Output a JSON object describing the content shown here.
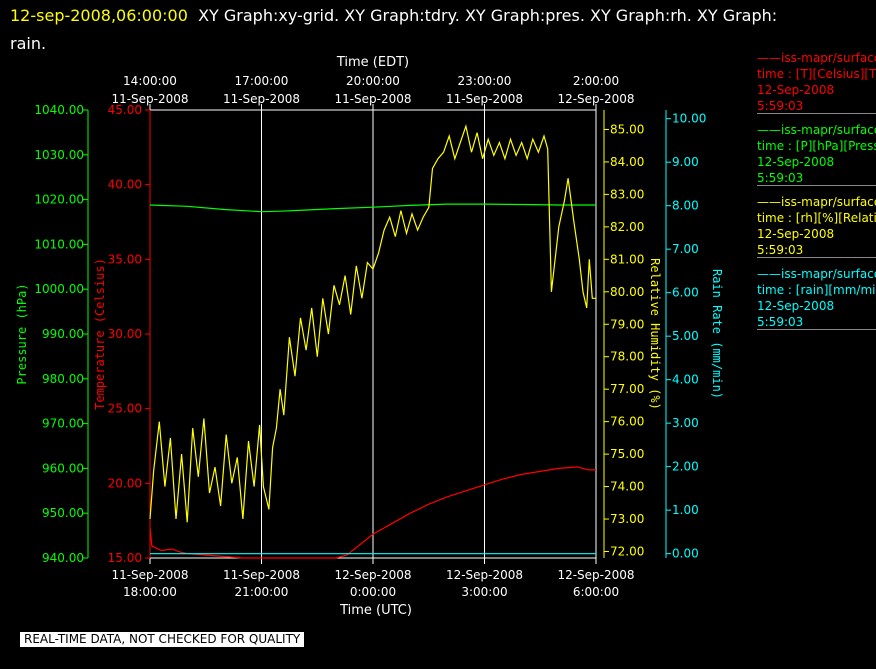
{
  "header": {
    "timestamp": "12-sep-2008,06:00:00",
    "line1": "XY Graph:xy-grid.  XY Graph:tdry.  XY Graph:pres.  XY Graph:rh.  XY Graph:",
    "line2": "rain."
  },
  "legend": [
    {
      "line": "——iss-mapr/surface",
      "desc": "time : [T][Celsius][T",
      "date": "12-Sep-2008",
      "time": "5:59:03",
      "color": "#ff0000"
    },
    {
      "line": "——iss-mapr/surface",
      "desc": "time : [P][hPa][Press",
      "date": "12-Sep-2008",
      "time": "5:59:03",
      "color": "#00ff00"
    },
    {
      "line": "——iss-mapr/surface",
      "desc": "time : [rh][%][Relati",
      "date": "12-Sep-2008",
      "time": "5:59:03",
      "color": "#ffff00"
    },
    {
      "line": "——iss-mapr/surface",
      "desc": "time : [rain][mm/min",
      "date": "12-Sep-2008",
      "time": "5:59:03",
      "color": "#00ffff"
    }
  ],
  "quality_note": "REAL-TIME DATA, NOT CHECKED FOR QUALITY",
  "chart_data": {
    "type": "line",
    "top_axis": {
      "title": "Time (EDT)",
      "ticks": [
        {
          "t": 0,
          "time": "14:00:00",
          "date": "11-Sep-2008"
        },
        {
          "t": 3,
          "time": "17:00:00",
          "date": "11-Sep-2008"
        },
        {
          "t": 6,
          "time": "20:00:00",
          "date": "11-Sep-2008"
        },
        {
          "t": 9,
          "time": "23:00:00",
          "date": "11-Sep-2008"
        },
        {
          "t": 12,
          "time": "2:00:00",
          "date": "12-Sep-2008"
        }
      ]
    },
    "bottom_axis": {
      "title": "Time (UTC)",
      "ticks": [
        {
          "t": 0,
          "date": "11-Sep-2008",
          "time": "18:00:00"
        },
        {
          "t": 3,
          "date": "11-Sep-2008",
          "time": "21:00:00"
        },
        {
          "t": 6,
          "date": "12-Sep-2008",
          "time": "0:00:00"
        },
        {
          "t": 9,
          "date": "12-Sep-2008",
          "time": "3:00:00"
        },
        {
          "t": 12,
          "date": "12-Sep-2008",
          "time": "6:00:00"
        }
      ]
    },
    "xlim": [
      0,
      12
    ],
    "grid": true,
    "axes": {
      "pressure": {
        "label": "Pressure (hPa)",
        "color": "#00ff00",
        "min": 940,
        "max": 1040,
        "ticks": [
          "940.00",
          "950.00",
          "960.00",
          "970.00",
          "980.00",
          "990.00",
          "1000.00",
          "1010.00",
          "1020.00",
          "1030.00",
          "1040.00"
        ]
      },
      "temperature": {
        "label": "Temperature (Celsius)",
        "color": "#ff0000",
        "min": 15,
        "max": 45,
        "ticks": [
          "15.00",
          "20.00",
          "25.00",
          "30.00",
          "35.00",
          "40.00",
          "45.00"
        ]
      },
      "rh": {
        "label": "Relative Humidity (%)",
        "color": "#ffff00",
        "min": 71.8,
        "max": 85.6,
        "ticks": [
          "72.00",
          "73.00",
          "74.00",
          "75.00",
          "76.00",
          "77.00",
          "78.00",
          "79.00",
          "80.00",
          "81.00",
          "82.00",
          "83.00",
          "84.00",
          "85.00"
        ]
      },
      "rain": {
        "label": "Rain Rate (mm/min)",
        "color": "#00ffff",
        "min": -0.1,
        "max": 10.2,
        "ticks": [
          "0.00",
          "1.00",
          "2.00",
          "3.00",
          "4.00",
          "5.00",
          "6.00",
          "7.00",
          "8.00",
          "9.00",
          "10.00"
        ]
      }
    },
    "series": [
      {
        "axis": "temperature",
        "color": "#ff0000",
        "points": [
          [
            0,
            17
          ],
          [
            0.05,
            15.8
          ],
          [
            0.3,
            15.5
          ],
          [
            0.6,
            15.6
          ],
          [
            0.8,
            15.4
          ],
          [
            1,
            15.3
          ],
          [
            1.5,
            15.2
          ],
          [
            2,
            15.1
          ],
          [
            2.5,
            15
          ],
          [
            3,
            15
          ],
          [
            4,
            15
          ],
          [
            4.5,
            15
          ],
          [
            5,
            15
          ],
          [
            5.3,
            15.2
          ],
          [
            5.6,
            15.8
          ],
          [
            6,
            16.6
          ],
          [
            6.5,
            17.3
          ],
          [
            7,
            18
          ],
          [
            7.5,
            18.6
          ],
          [
            8,
            19.1
          ],
          [
            8.5,
            19.5
          ],
          [
            9,
            19.9
          ],
          [
            9.5,
            20.3
          ],
          [
            10,
            20.6
          ],
          [
            10.5,
            20.8
          ],
          [
            11,
            21
          ],
          [
            11.5,
            21.1
          ],
          [
            11.8,
            20.9
          ],
          [
            12,
            20.9
          ]
        ]
      },
      {
        "axis": "pressure",
        "color": "#00ff00",
        "points": [
          [
            0,
            1018.8
          ],
          [
            1,
            1018.5
          ],
          [
            2,
            1017.8
          ],
          [
            3,
            1017.3
          ],
          [
            3.5,
            1017.4
          ],
          [
            4,
            1017.6
          ],
          [
            5,
            1018
          ],
          [
            6,
            1018.3
          ],
          [
            7,
            1018.7
          ],
          [
            8,
            1019
          ],
          [
            9,
            1019
          ],
          [
            10,
            1018.9
          ],
          [
            11,
            1018.8
          ],
          [
            12,
            1018.8
          ]
        ]
      },
      {
        "axis": "rh",
        "color": "#ffff00",
        "points": [
          [
            0,
            73
          ],
          [
            0.1,
            74.5
          ],
          [
            0.25,
            76
          ],
          [
            0.4,
            74
          ],
          [
            0.55,
            75.5
          ],
          [
            0.7,
            73
          ],
          [
            0.85,
            75
          ],
          [
            1,
            72.9
          ],
          [
            1.15,
            75.8
          ],
          [
            1.3,
            74.3
          ],
          [
            1.45,
            76.1
          ],
          [
            1.6,
            73.8
          ],
          [
            1.75,
            74.6
          ],
          [
            1.9,
            73.4
          ],
          [
            2.05,
            75.6
          ],
          [
            2.2,
            74.1
          ],
          [
            2.35,
            74.9
          ],
          [
            2.5,
            73
          ],
          [
            2.65,
            75.4
          ],
          [
            2.8,
            74
          ],
          [
            2.95,
            75.9
          ],
          [
            3.05,
            74
          ],
          [
            3.2,
            73.3
          ],
          [
            3.3,
            75.2
          ],
          [
            3.4,
            75.8
          ],
          [
            3.5,
            77
          ],
          [
            3.6,
            76.2
          ],
          [
            3.75,
            78.6
          ],
          [
            3.9,
            77.4
          ],
          [
            4.05,
            79.2
          ],
          [
            4.2,
            78.2
          ],
          [
            4.35,
            79.5
          ],
          [
            4.5,
            78
          ],
          [
            4.65,
            79.8
          ],
          [
            4.8,
            78.7
          ],
          [
            4.95,
            80.2
          ],
          [
            5.1,
            79.6
          ],
          [
            5.25,
            80.5
          ],
          [
            5.4,
            79.3
          ],
          [
            5.55,
            80.8
          ],
          [
            5.7,
            79.8
          ],
          [
            5.85,
            80.9
          ],
          [
            6,
            80.7
          ],
          [
            6.15,
            81.2
          ],
          [
            6.3,
            81.9
          ],
          [
            6.45,
            82.3
          ],
          [
            6.6,
            81.7
          ],
          [
            6.75,
            82.5
          ],
          [
            6.9,
            81.8
          ],
          [
            7.05,
            82.4
          ],
          [
            7.2,
            81.9
          ],
          [
            7.35,
            82.3
          ],
          [
            7.5,
            82.6
          ],
          [
            7.6,
            83.8
          ],
          [
            7.75,
            84.1
          ],
          [
            7.9,
            84.3
          ],
          [
            8.05,
            84.8
          ],
          [
            8.2,
            84.1
          ],
          [
            8.35,
            84.6
          ],
          [
            8.5,
            85.1
          ],
          [
            8.65,
            84.3
          ],
          [
            8.8,
            84.9
          ],
          [
            8.95,
            84.1
          ],
          [
            9.1,
            84.7
          ],
          [
            9.25,
            84.2
          ],
          [
            9.4,
            84.6
          ],
          [
            9.55,
            84.1
          ],
          [
            9.7,
            84.7
          ],
          [
            9.85,
            84.2
          ],
          [
            10,
            84.6
          ],
          [
            10.15,
            84.1
          ],
          [
            10.3,
            84.7
          ],
          [
            10.45,
            84.3
          ],
          [
            10.6,
            84.8
          ],
          [
            10.7,
            84.4
          ],
          [
            10.8,
            80
          ],
          [
            10.9,
            81
          ],
          [
            11,
            82
          ],
          [
            11.15,
            82.8
          ],
          [
            11.25,
            83.5
          ],
          [
            11.4,
            82.2
          ],
          [
            11.55,
            81
          ],
          [
            11.65,
            80
          ],
          [
            11.75,
            79.5
          ],
          [
            11.82,
            81
          ],
          [
            11.9,
            79.8
          ],
          [
            12,
            79.8
          ]
        ]
      },
      {
        "axis": "rain",
        "color": "#00ffff",
        "points": [
          [
            0,
            0
          ],
          [
            12,
            0
          ]
        ]
      }
    ]
  }
}
